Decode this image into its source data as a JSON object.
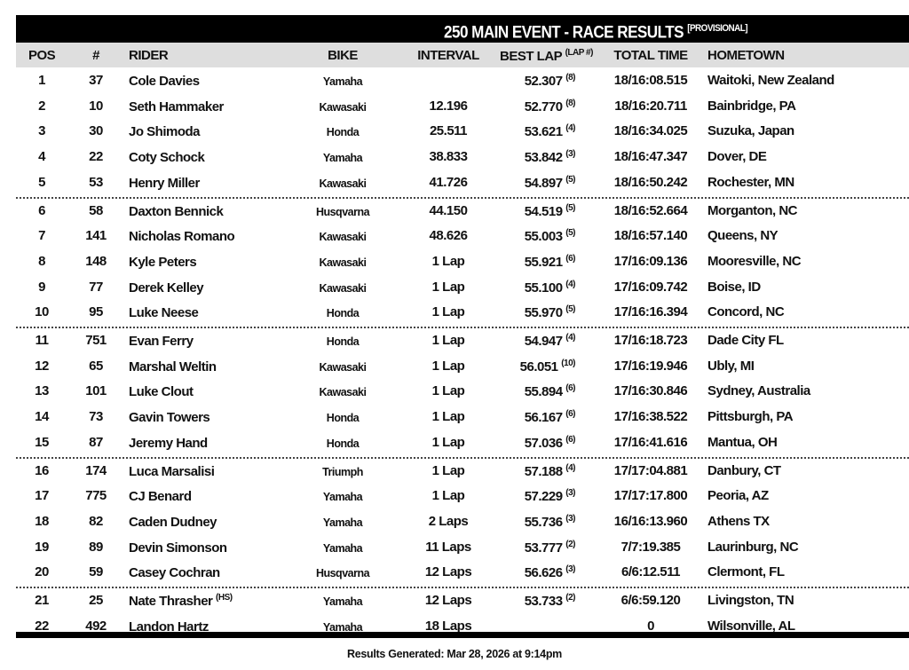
{
  "title": "250 MAIN EVENT - RACE RESULTS",
  "title_tag": "[PROVISIONAL]",
  "columns": {
    "pos": "POS",
    "num": "#",
    "rider": "RIDER",
    "bike": "BIKE",
    "interval": "INTERVAL",
    "best_lap": "BEST LAP",
    "best_lap_sup": "(LAP #)",
    "total_time": "TOTAL TIME",
    "hometown": "HOMETOWN"
  },
  "rows": [
    {
      "pos": "1",
      "num": "37",
      "rider": "Cole Davies",
      "rider_tag": "",
      "bike": "Yamaha",
      "interval": "",
      "best": "52.307",
      "lap": "(8)",
      "total": "18/16:08.515",
      "home": "Waitoki, New Zealand"
    },
    {
      "pos": "2",
      "num": "10",
      "rider": "Seth Hammaker",
      "rider_tag": "",
      "bike": "Kawasaki",
      "interval": "12.196",
      "best": "52.770",
      "lap": "(8)",
      "total": "18/16:20.711",
      "home": "Bainbridge, PA"
    },
    {
      "pos": "3",
      "num": "30",
      "rider": "Jo Shimoda",
      "rider_tag": "",
      "bike": "Honda",
      "interval": "25.511",
      "best": "53.621",
      "lap": "(4)",
      "total": "18/16:34.025",
      "home": "Suzuka, Japan"
    },
    {
      "pos": "4",
      "num": "22",
      "rider": "Coty Schock",
      "rider_tag": "",
      "bike": "Yamaha",
      "interval": "38.833",
      "best": "53.842",
      "lap": "(3)",
      "total": "18/16:47.347",
      "home": "Dover, DE"
    },
    {
      "pos": "5",
      "num": "53",
      "rider": "Henry Miller",
      "rider_tag": "",
      "bike": "Kawasaki",
      "interval": "41.726",
      "best": "54.897",
      "lap": "(5)",
      "total": "18/16:50.242",
      "home": "Rochester, MN"
    },
    {
      "pos": "6",
      "num": "58",
      "rider": "Daxton Bennick",
      "rider_tag": "",
      "bike": "Husqvarna",
      "interval": "44.150",
      "best": "54.519",
      "lap": "(5)",
      "total": "18/16:52.664",
      "home": "Morganton, NC"
    },
    {
      "pos": "7",
      "num": "141",
      "rider": "Nicholas Romano",
      "rider_tag": "",
      "bike": "Kawasaki",
      "interval": "48.626",
      "best": "55.003",
      "lap": "(5)",
      "total": "18/16:57.140",
      "home": "Queens, NY"
    },
    {
      "pos": "8",
      "num": "148",
      "rider": "Kyle Peters",
      "rider_tag": "",
      "bike": "Kawasaki",
      "interval": "1 Lap",
      "best": "55.921",
      "lap": "(6)",
      "total": "17/16:09.136",
      "home": "Mooresville, NC"
    },
    {
      "pos": "9",
      "num": "77",
      "rider": "Derek Kelley",
      "rider_tag": "",
      "bike": "Kawasaki",
      "interval": "1 Lap",
      "best": "55.100",
      "lap": "(4)",
      "total": "17/16:09.742",
      "home": "Boise, ID"
    },
    {
      "pos": "10",
      "num": "95",
      "rider": "Luke Neese",
      "rider_tag": "",
      "bike": "Honda",
      "interval": "1 Lap",
      "best": "55.970",
      "lap": "(5)",
      "total": "17/16:16.394",
      "home": "Concord, NC"
    },
    {
      "pos": "11",
      "num": "751",
      "rider": "Evan Ferry",
      "rider_tag": "",
      "bike": "Honda",
      "interval": "1 Lap",
      "best": "54.947",
      "lap": "(4)",
      "total": "17/16:18.723",
      "home": "Dade City FL"
    },
    {
      "pos": "12",
      "num": "65",
      "rider": "Marshal Weltin",
      "rider_tag": "",
      "bike": "Kawasaki",
      "interval": "1 Lap",
      "best": "56.051",
      "lap": "(10)",
      "total": "17/16:19.946",
      "home": "Ubly, MI"
    },
    {
      "pos": "13",
      "num": "101",
      "rider": "Luke Clout",
      "rider_tag": "",
      "bike": "Kawasaki",
      "interval": "1 Lap",
      "best": "55.894",
      "lap": "(6)",
      "total": "17/16:30.846",
      "home": "Sydney, Australia"
    },
    {
      "pos": "14",
      "num": "73",
      "rider": "Gavin Towers",
      "rider_tag": "",
      "bike": "Honda",
      "interval": "1 Lap",
      "best": "56.167",
      "lap": "(6)",
      "total": "17/16:38.522",
      "home": "Pittsburgh, PA"
    },
    {
      "pos": "15",
      "num": "87",
      "rider": "Jeremy Hand",
      "rider_tag": "",
      "bike": "Honda",
      "interval": "1 Lap",
      "best": "57.036",
      "lap": "(6)",
      "total": "17/16:41.616",
      "home": "Mantua, OH"
    },
    {
      "pos": "16",
      "num": "174",
      "rider": "Luca Marsalisi",
      "rider_tag": "",
      "bike": "Triumph",
      "interval": "1 Lap",
      "best": "57.188",
      "lap": "(4)",
      "total": "17/17:04.881",
      "home": "Danbury, CT"
    },
    {
      "pos": "17",
      "num": "775",
      "rider": "CJ Benard",
      "rider_tag": "",
      "bike": "Yamaha",
      "interval": "1 Lap",
      "best": "57.229",
      "lap": "(3)",
      "total": "17/17:17.800",
      "home": "Peoria, AZ"
    },
    {
      "pos": "18",
      "num": "82",
      "rider": "Caden Dudney",
      "rider_tag": "",
      "bike": "Yamaha",
      "interval": "2 Laps",
      "best": "55.736",
      "lap": "(3)",
      "total": "16/16:13.960",
      "home": "Athens TX"
    },
    {
      "pos": "19",
      "num": "89",
      "rider": "Devin Simonson",
      "rider_tag": "",
      "bike": "Yamaha",
      "interval": "11 Laps",
      "best": "53.777",
      "lap": "(2)",
      "total": "7/7:19.385",
      "home": "Laurinburg, NC"
    },
    {
      "pos": "20",
      "num": "59",
      "rider": "Casey Cochran",
      "rider_tag": "",
      "bike": "Husqvarna",
      "interval": "12 Laps",
      "best": "56.626",
      "lap": "(3)",
      "total": "6/6:12.511",
      "home": "Clermont, FL"
    },
    {
      "pos": "21",
      "num": "25",
      "rider": "Nate Thrasher",
      "rider_tag": "(HS)",
      "bike": "Yamaha",
      "interval": "12 Laps",
      "best": "53.733",
      "lap": "(2)",
      "total": "6/6:59.120",
      "home": "Livingston, TN"
    },
    {
      "pos": "22",
      "num": "492",
      "rider": "Landon Hartz",
      "rider_tag": "",
      "bike": "Yamaha",
      "interval": "18 Laps",
      "best": "",
      "lap": "",
      "total": "0",
      "home": "Wilsonville, AL"
    }
  ],
  "footer": "Results Generated: Mar 28, 2026 at 9:14pm"
}
